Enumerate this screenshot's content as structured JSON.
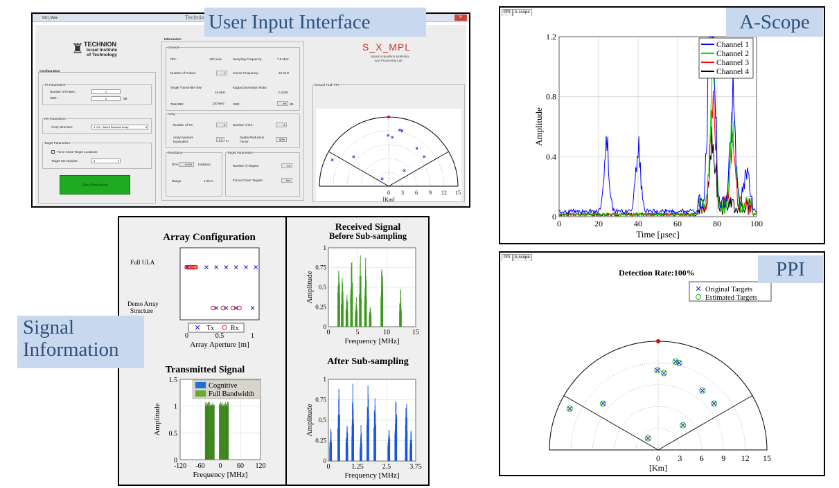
{
  "callouts": {
    "ui": "User Input Interface",
    "ascope": "A-Scope",
    "signal_line1": "Signal",
    "signal_line2": "Information",
    "ppi": "PPI"
  },
  "gui": {
    "window_title": "GUI_Main",
    "title_bar_center": "TechnionLogo",
    "logo_title": "TECHNION",
    "logo_sub1": "Israel Institute",
    "logo_sub2": "of Technology",
    "lab_logo": "S_X_MPL",
    "lab_sub1": "Signal Acquisition Modeling",
    "lab_sub2": "and Processing Lab",
    "configuration": {
      "title": "Configuration",
      "tx_params": "TX Parameters",
      "num_pulses_label": "Number of Pulses:",
      "num_pulses_value": "1",
      "snr_label": "SNR:",
      "snr_value": "0",
      "snr_unit": "dB",
      "rx_params": "RX Parameters",
      "array_structure_label": "Array Structure:",
      "array_structure_value": "4 X 8 - Sliced Random Array",
      "target_params": "Target Parameters",
      "force_close_label": "Force Close Target Locations",
      "target_set_label": "Target Set Number:",
      "target_set_value": "3",
      "run_button": "Run Simulation"
    },
    "information": {
      "title": "Information",
      "general": "General",
      "pri_label": "PRI:",
      "pri_value": "100 usec",
      "fs_label": "Sampling Frequency:",
      "fs_value": "7.5 MHz",
      "pulses_label": "Number of Pulses:",
      "pulses_value": "1",
      "fc_label": "Carrier Frequency:",
      "fc_value": "10 GHz",
      "stbw_label": "Single Transmitter BW:",
      "stbw_value": "15 MHz",
      "kappa_label": "Kappa Decimation Ratio:",
      "kappa_value": "0.2025",
      "tbw_label": "Total BW:",
      "tbw_value": "120 MHz",
      "snr_label": "SNR:",
      "snr_value": "inf",
      "snr_unit": "dB",
      "array": "Array",
      "ntx_label": "Number of TX:",
      "ntx_value": "4",
      "nrx_label": "Number of RX:",
      "nrx_value": "4",
      "aperture_label1": "Array Aperture",
      "aperture_label2": "Equivalent:",
      "aperture_value": "1.2",
      "aperture_unit": "m",
      "spatial_label1": "Spatial Reduction",
      "spatial_label2": "Factor:",
      "spatial_value": "50%",
      "resolution": "Resolution",
      "doa_label": "DOA:",
      "doa_value": "0.025",
      "doa_unit": "(radians)",
      "range_label": "Range:",
      "range_value": "1.25 m",
      "target_params": "Target Parameters",
      "ntargets_label": "Number of Targets:",
      "ntargets_value": "10",
      "forced_label": "Forced Close Targets:",
      "forced_value": "Yes"
    },
    "ground_truth": {
      "title": "Ground Truth PPI",
      "xlabel": "[Km]",
      "ticks": [
        "0",
        "3",
        "6",
        "9",
        "12",
        "15"
      ]
    }
  },
  "ascope": {
    "tabs": [
      "PPI",
      "A-scope"
    ],
    "chart_data": {
      "type": "line",
      "title": "",
      "xlabel": "Time [μsec]",
      "ylabel": "Amplitude",
      "xlim": [
        0,
        100
      ],
      "ylim": [
        0,
        1.2
      ],
      "xticks": [
        "0",
        "20",
        "40",
        "60",
        "80",
        "100"
      ],
      "yticks": [
        "0",
        "0.4",
        "0.8",
        "1.2"
      ],
      "legend_position": "top-right",
      "series": [
        {
          "name": "Channel 1",
          "color": "#0000ff",
          "peaks": [
            [
              24,
              0.6
            ],
            [
              40,
              0.58
            ],
            [
              76,
              0.97
            ],
            [
              78,
              0.9
            ],
            [
              88,
              0.9
            ],
            [
              95,
              0.28
            ]
          ]
        },
        {
          "name": "Channel 2",
          "color": "#00dd00",
          "peaks": [
            [
              78,
              1.05
            ],
            [
              88,
              0.78
            ]
          ]
        },
        {
          "name": "Channel 3",
          "color": "#ff0000",
          "peaks": [
            [
              78,
              0.75
            ],
            [
              88,
              0.62
            ]
          ]
        },
        {
          "name": "Channel 4",
          "color": "#000000",
          "peaks": [
            [
              78,
              0.4
            ]
          ]
        }
      ]
    }
  },
  "ppi": {
    "tabs": [
      "PPI",
      "A-scope"
    ],
    "title": "Detection Rate:100%",
    "xlabel": "[Km]",
    "ticks": [
      "0",
      "3",
      "6",
      "9",
      "12",
      "15"
    ],
    "legend": [
      "Original Targets",
      "Estimated Targets"
    ],
    "chart_data": {
      "type": "scatter",
      "xlim": [
        -15,
        15
      ],
      "ylim": [
        0,
        15
      ],
      "targets": [
        [
          -12.2,
          5.7
        ],
        [
          -7.6,
          6.4
        ],
        [
          0.8,
          10.6
        ],
        [
          2.4,
          12.2
        ],
        [
          2.9,
          12.0
        ],
        [
          6.1,
          8.2
        ],
        [
          7.7,
          6.4
        ],
        [
          3.4,
          3.4
        ],
        [
          -1.4,
          1.6
        ],
        [
          -0.1,
          11.0
        ]
      ]
    }
  },
  "array_config": {
    "chart_data": {
      "type": "scatter",
      "title": "Array Configuration",
      "xlabel": "Array Aperture [m]",
      "xlim": [
        -0.1,
        1.1
      ],
      "xticks": [
        "0",
        "0.5",
        "1"
      ],
      "rows": [
        "Full ULA",
        "Demo Array Structure"
      ],
      "full_ula_tx": [
        0.0,
        0.3,
        0.45,
        0.6,
        0.75,
        0.9,
        1.05
      ],
      "full_ula_rx": [
        0.0,
        0.02,
        0.04,
        0.06,
        0.08,
        0.1,
        0.12,
        0.14
      ],
      "demo_tx": [
        0.45,
        0.6,
        0.75,
        1.0
      ],
      "demo_rx": [
        0.4,
        0.55,
        0.7,
        0.8
      ],
      "legend": [
        "Tx",
        "Rx"
      ]
    }
  },
  "received": {
    "title1": "Received Signal",
    "title2": "Before Sub-sampling",
    "chart_data": {
      "type": "bar",
      "xlabel": "Frequency [MHz]",
      "ylabel": "Amplitude",
      "xlim": [
        0,
        15
      ],
      "ylim": [
        0,
        1
      ],
      "xticks": [
        "0",
        "5",
        "10",
        "15"
      ],
      "yticks": [
        "0",
        "0.25",
        "0.5",
        "0.75",
        "1"
      ],
      "color": "#3d9a1f",
      "bands": [
        [
          1.8,
          1.0
        ],
        [
          2.4,
          0.7
        ],
        [
          3.2,
          0.45
        ],
        [
          4.0,
          0.97
        ],
        [
          4.8,
          0.4
        ],
        [
          5.5,
          0.95
        ],
        [
          6.4,
          0.88
        ],
        [
          7.2,
          0.3
        ],
        [
          9.2,
          0.98
        ],
        [
          12.4,
          0.5
        ]
      ]
    }
  },
  "after": {
    "title": "After Sub-sampling",
    "chart_data": {
      "type": "bar",
      "xlabel": "Frequency [MHz]",
      "ylabel": "Amplitude",
      "xlim": [
        0,
        3.75
      ],
      "ylim": [
        0,
        1
      ],
      "xticks": [
        "0",
        "1.25",
        "2.5",
        "3.75"
      ],
      "yticks": [
        "0",
        "0.25",
        "0.5",
        "0.75",
        "1"
      ],
      "color": "#1a56e6",
      "bands": [
        [
          0.1,
          0.5
        ],
        [
          0.45,
          0.95
        ],
        [
          0.8,
          0.5
        ],
        [
          1.05,
          0.98
        ],
        [
          1.4,
          0.45
        ],
        [
          1.7,
          0.95
        ],
        [
          2.0,
          0.92
        ],
        [
          2.6,
          0.5
        ],
        [
          2.9,
          0.92
        ],
        [
          3.35,
          0.9
        ],
        [
          3.55,
          0.4
        ]
      ]
    }
  },
  "transmitted": {
    "title": "Transmitted Signal",
    "chart_data": {
      "type": "bar",
      "xlabel": "Frequency [MHz]",
      "ylabel": "Amplitude",
      "xlim": [
        -120,
        120
      ],
      "ylim": [
        0,
        1.5
      ],
      "xticks": [
        "-120",
        "-60",
        "0",
        "60",
        "120"
      ],
      "yticks": [
        "0",
        "0.5",
        "1",
        "1.5"
      ],
      "legend": [
        "Cognitive",
        "Full Bandwidth"
      ],
      "cognitive_color": "#1f6fd6",
      "full_color": "#6aaa30",
      "bands": [
        [
          -45,
          -18
        ],
        [
          -3,
          24
        ]
      ]
    }
  }
}
